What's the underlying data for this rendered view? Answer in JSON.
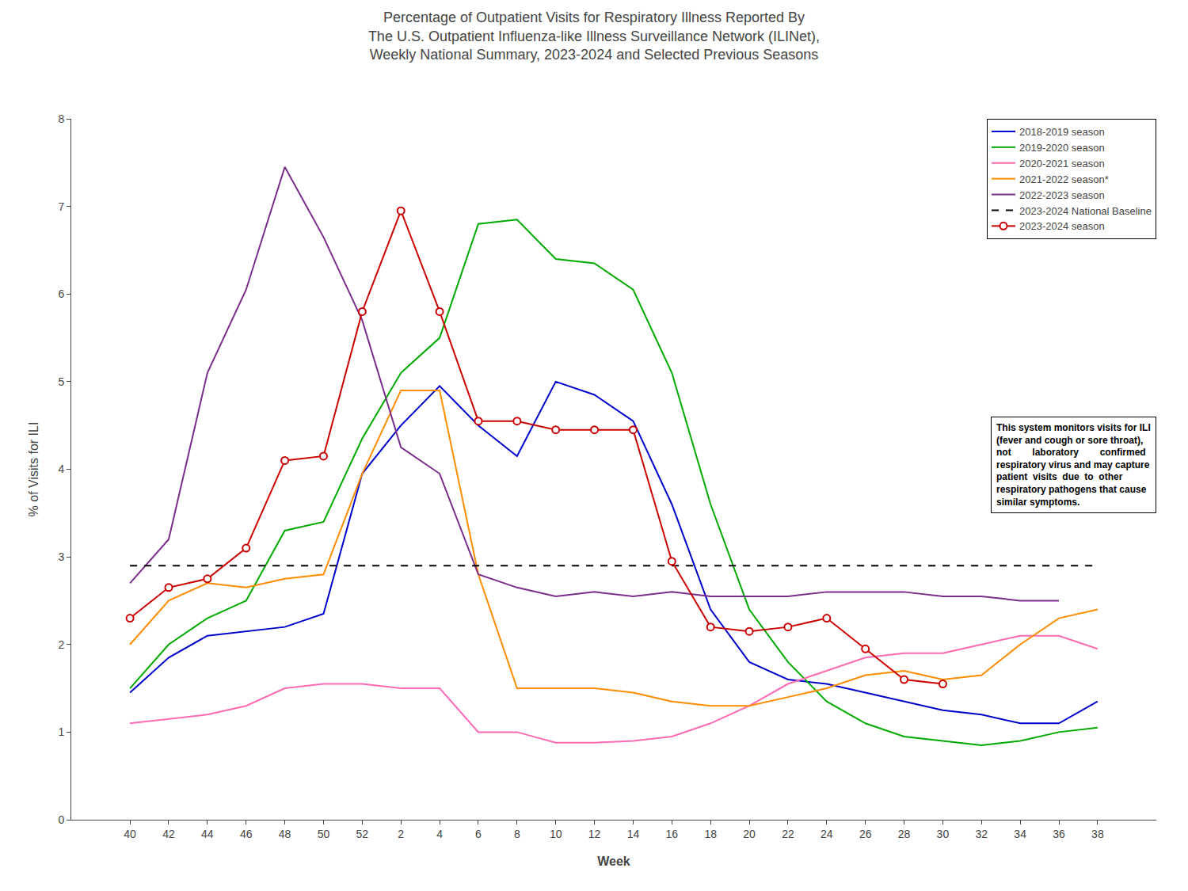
{
  "chart_data": {
    "type": "line",
    "title": "Percentage of Outpatient Visits for Respiratory Illness Reported By\nThe U.S. Outpatient Influenza-like Illness Surveillance Network (ILINet),\nWeekly National Summary, 2023-2024 and Selected Previous Seasons",
    "x_label": "Week",
    "y_label": "% of Visits for ILI",
    "categories": [
      "40",
      "42",
      "44",
      "46",
      "48",
      "50",
      "52",
      "2",
      "4",
      "6",
      "8",
      "10",
      "12",
      "14",
      "16",
      "18",
      "20",
      "22",
      "24",
      "26",
      "28",
      "30",
      "32",
      "34",
      "36",
      "38"
    ],
    "ylim": [
      0,
      8
    ],
    "yticks": [
      0,
      1,
      2,
      3,
      4,
      5,
      6,
      7,
      8
    ],
    "grid": false,
    "legend": "upper right",
    "annotation": "This system monitors visits for ILI\n(fever and cough or sore throat),\nnot        laboratory        confirmed\nrespiratory virus and may capture\npatient  visits  due  to  other\nrespiratory pathogens that cause\nsimilar symptoms.",
    "series": [
      {
        "name": "2018-2019 season",
        "color": "#0000CC",
        "values": [
          1.45,
          1.85,
          2.1,
          2.15,
          2.2,
          2.35,
          3.95,
          4.5,
          4.95,
          4.5,
          4.15,
          5.0,
          4.85,
          4.55,
          3.6,
          2.4,
          1.8,
          1.6,
          1.55,
          1.45,
          1.35,
          1.25,
          1.2,
          1.1,
          1.1,
          1.35
        ]
      },
      {
        "name": "2019-2020 season",
        "color": "#00AA00",
        "values": [
          1.5,
          2.0,
          2.3,
          2.5,
          3.3,
          3.4,
          4.35,
          5.1,
          5.5,
          6.8,
          6.85,
          6.4,
          6.35,
          6.05,
          5.1,
          3.6,
          2.4,
          1.8,
          1.35,
          1.1,
          0.95,
          0.9,
          0.85,
          0.9,
          1.0,
          1.05
        ]
      },
      {
        "name": "2020-2021 season",
        "color": "#FF69B4",
        "values": [
          1.1,
          1.15,
          1.2,
          1.3,
          1.5,
          1.55,
          1.55,
          1.5,
          1.5,
          1.0,
          1.0,
          0.88,
          0.88,
          0.9,
          0.95,
          1.1,
          1.3,
          1.55,
          1.7,
          1.85,
          1.9,
          1.9,
          2.0,
          2.1,
          2.1,
          1.95
        ]
      },
      {
        "name": "2021-2022 season*",
        "color": "#FF8C00",
        "values": [
          2.0,
          2.5,
          2.7,
          2.65,
          2.75,
          2.8,
          3.95,
          4.9,
          4.9,
          2.8,
          1.5,
          1.5,
          1.5,
          1.45,
          1.35,
          1.3,
          1.3,
          1.4,
          1.5,
          1.65,
          1.7,
          1.6,
          1.65,
          2.0,
          2.3,
          2.4
        ]
      },
      {
        "name": "2022-2023 season",
        "color": "#7B2D8B",
        "values": [
          2.7,
          3.2,
          5.1,
          6.05,
          7.45,
          6.65,
          5.7,
          4.25,
          3.95,
          2.8,
          2.65,
          2.55,
          2.6,
          2.55,
          2.6,
          2.55,
          2.55,
          2.55,
          2.6,
          2.6,
          2.6,
          2.55,
          2.55,
          2.5,
          2.5,
          null
        ]
      },
      {
        "name": "2023-2024 National Baseline",
        "type": "hline",
        "value": 2.9,
        "color": "#000000",
        "line_style": "dashed"
      },
      {
        "name": "2023-2024 season",
        "color": "#CC0000",
        "marker": "circle",
        "values": [
          2.3,
          2.65,
          2.75,
          3.1,
          4.1,
          4.15,
          5.8,
          6.95,
          5.8,
          4.55,
          4.55,
          4.45,
          4.45,
          4.45,
          2.95,
          2.2,
          2.15,
          2.2,
          2.3,
          1.95,
          1.6,
          1.55,
          null,
          null,
          null,
          null
        ]
      }
    ]
  }
}
